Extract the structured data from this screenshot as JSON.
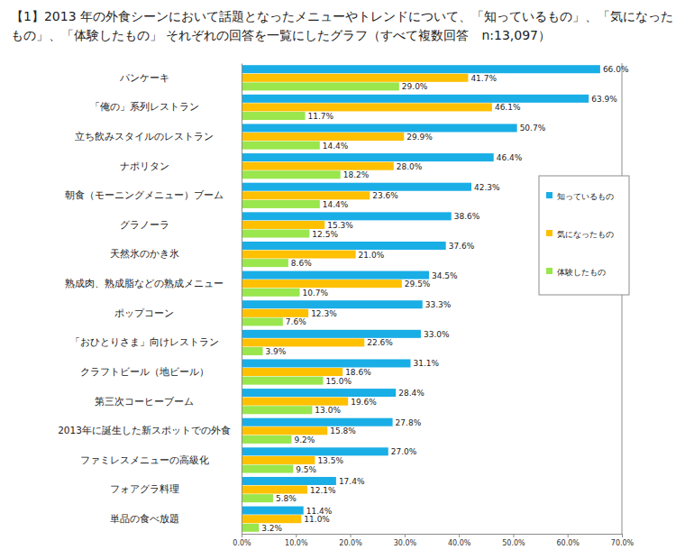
{
  "chart_data": {
    "type": "bar",
    "orientation": "horizontal",
    "title": "【1】2013 年の外食シーンにおいて話題となったメニューやトレンドについて、「知っているもの」、「気になったもの」、「体験したもの」 それぞれの回答を一覧にしたグラフ（すべて複数回答　n:13,097）",
    "categories": [
      "パンケーキ",
      "「俺の」系列レストラン",
      "立ち飲みスタイルのレストラン",
      "ナポリタン",
      "朝食（モーニングメニュー）ブーム",
      "グラノーラ",
      "天然氷のかき氷",
      "熟成肉、熟成脂などの熟成メニュー",
      "ポップコーン",
      "「おひとりさま」向けレストラン",
      "クラフトビール（地ビール）",
      "第三次コーヒーブーム",
      "2013年に誕生した新スポットでの外食",
      "ファミレスメニューの高級化",
      "フォアグラ料理",
      "単品の食べ放題"
    ],
    "series": [
      {
        "name": "知っているもの",
        "color": "#1aaee6",
        "values": [
          66.0,
          63.9,
          50.7,
          46.4,
          42.3,
          38.6,
          37.6,
          34.5,
          33.3,
          33.0,
          31.1,
          28.4,
          27.8,
          27.0,
          17.4,
          11.4
        ],
        "value_labels": [
          "66.0%",
          "63.9%",
          "50.7%",
          "46.4%",
          "42.3%",
          "38.6%",
          "37.6%",
          "34.5%",
          "33.3%",
          "33.0%",
          "31.1%",
          "28.4%",
          "27.8%",
          "27.0%",
          "17.4%",
          "11.4%"
        ]
      },
      {
        "name": "気になったもの",
        "color": "#ffc000",
        "values": [
          41.7,
          46.1,
          29.9,
          28.0,
          23.6,
          15.3,
          21.0,
          29.5,
          12.3,
          22.6,
          18.6,
          19.6,
          15.8,
          13.5,
          12.1,
          11.0
        ],
        "value_labels": [
          "41.7%",
          "46.1%",
          "29.9%",
          "28.0%",
          "23.6%",
          "15.3%",
          "21.0%",
          "29.5%",
          "12.3%",
          "22.6%",
          "18.6%",
          "19.6%",
          "15.8%",
          "13.5%",
          "12.1%",
          "11.0%"
        ]
      },
      {
        "name": "体験したもの",
        "color": "#99e64d",
        "values": [
          29.0,
          11.7,
          14.4,
          18.2,
          14.4,
          12.5,
          8.6,
          10.7,
          7.6,
          3.9,
          15.0,
          13.0,
          9.2,
          9.5,
          5.8,
          3.2
        ],
        "value_labels": [
          "29.0%",
          "11.7%",
          "14.4%",
          "18.2%",
          "14.4%",
          "12.5%",
          "8.6%",
          "10.7%",
          "7.6%",
          "3.9%",
          "15.0%",
          "13.0%",
          "9.2%",
          "9.5%",
          "5.8%",
          "3.2%"
        ]
      }
    ],
    "xlim": [
      0,
      70
    ],
    "xticks": [
      {
        "value": 0,
        "label": "0.0%"
      },
      {
        "value": 10,
        "label": "10.0%"
      },
      {
        "value": 20,
        "label": "20.0%"
      },
      {
        "value": 30,
        "label": "30.0%"
      },
      {
        "value": 40,
        "label": "40.0%"
      },
      {
        "value": 50,
        "label": "50.0%"
      },
      {
        "value": 60,
        "label": "60.0%"
      },
      {
        "value": 70,
        "label": "70.0%"
      }
    ],
    "grid": false,
    "legend": "right",
    "data_labels": true
  }
}
